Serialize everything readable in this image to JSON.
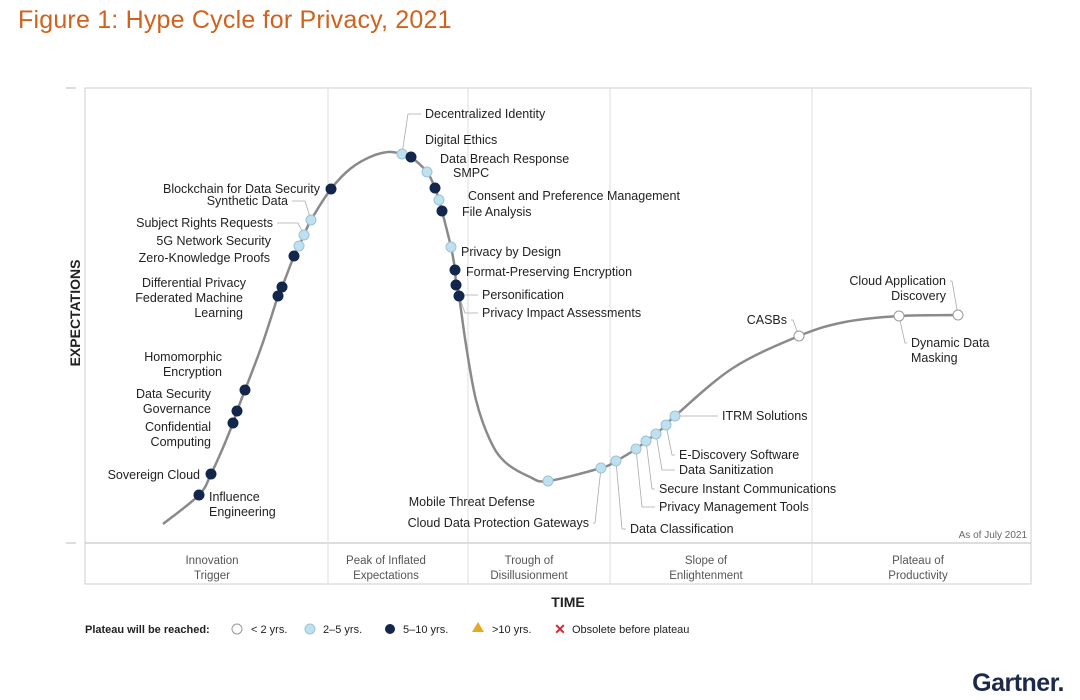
{
  "title": "Figure 1: Hype Cycle for Privacy, 2021",
  "brand": "Gartner.",
  "chart_data": {
    "type": "hype-cycle",
    "xlabel": "TIME",
    "ylabel": "EXPECTATIONS",
    "as_of": "As of July 2021",
    "phases": [
      {
        "line1": "Innovation",
        "line2": "Trigger"
      },
      {
        "line1": "Peak of Inflated",
        "line2": "Expectations"
      },
      {
        "line1": "Trough of",
        "line2": "Disillusionment"
      },
      {
        "line1": "Slope of",
        "line2": "Enlightenment"
      },
      {
        "line1": "Plateau of",
        "line2": "Productivity"
      }
    ],
    "legend": {
      "title": "Plateau will be reached:",
      "items": [
        {
          "key": "lt2",
          "label": "< 2 yrs."
        },
        {
          "key": "2to5",
          "label": "2–5 yrs."
        },
        {
          "key": "5to10",
          "label": "5–10 yrs."
        },
        {
          "key": "gt10",
          "label": ">10 yrs."
        },
        {
          "key": "obsolete",
          "label": "Obsolete before plateau"
        }
      ]
    },
    "technologies": [
      {
        "name": "Influence Engineering",
        "lines": [
          "Influence",
          "Engineering"
        ],
        "position": 0.04,
        "plateau": "5to10"
      },
      {
        "name": "Sovereign Cloud",
        "lines": [
          "Sovereign Cloud"
        ],
        "position": 0.055,
        "plateau": "5to10"
      },
      {
        "name": "Confidential Computing",
        "lines": [
          "Confidential",
          "Computing"
        ],
        "position": 0.087,
        "plateau": "5to10"
      },
      {
        "name": "Data Security Governance",
        "lines": [
          "Data Security",
          "Governance"
        ],
        "position": 0.09,
        "plateau": "5to10"
      },
      {
        "name": "Homomorphic Encryption",
        "lines": [
          "Homomorphic",
          "Encryption"
        ],
        "position": 0.097,
        "plateau": "5to10"
      },
      {
        "name": "Federated Machine Learning",
        "lines": [
          "Federated Machine",
          "Learning"
        ],
        "position": 0.125,
        "plateau": "5to10"
      },
      {
        "name": "Differential Privacy",
        "lines": [
          "Differential Privacy"
        ],
        "position": 0.128,
        "plateau": "5to10"
      },
      {
        "name": "Zero-Knowledge Proofs",
        "lines": [
          "Zero-Knowledge Proofs"
        ],
        "position": 0.137,
        "plateau": "5to10"
      },
      {
        "name": "5G Network Security",
        "lines": [
          "5G Network Security"
        ],
        "position": 0.14,
        "plateau": "2to5"
      },
      {
        "name": "Subject Rights Requests",
        "lines": [
          "Subject Rights Requests"
        ],
        "position": 0.145,
        "plateau": "2to5"
      },
      {
        "name": "Synthetic Data",
        "lines": [
          "Synthetic Data"
        ],
        "position": 0.153,
        "plateau": "2to5"
      },
      {
        "name": "Blockchain for Data Security",
        "lines": [
          "Blockchain for Data Security"
        ],
        "position": 0.168,
        "plateau": "5to10"
      },
      {
        "name": "Decentralized Identity",
        "lines": [
          "Decentralized Identity"
        ],
        "position": 0.23,
        "plateau": "2to5"
      },
      {
        "name": "Digital Ethics",
        "lines": [
          "Digital Ethics"
        ],
        "position": 0.24,
        "plateau": "5to10"
      },
      {
        "name": "Data Breach Response",
        "lines": [
          "Data Breach Response"
        ],
        "position": 0.255,
        "plateau": "2to5"
      },
      {
        "name": "SMPC",
        "lines": [
          "SMPC"
        ],
        "position": 0.265,
        "plateau": "5to10"
      },
      {
        "name": "Consent and Preference Management",
        "lines": [
          "Consent and Preference Management"
        ],
        "position": 0.27,
        "plateau": "2to5"
      },
      {
        "name": "File Analysis",
        "lines": [
          "File Analysis"
        ],
        "position": 0.275,
        "plateau": "5to10"
      },
      {
        "name": "Privacy by Design",
        "lines": [
          "Privacy by Design"
        ],
        "position": 0.29,
        "plateau": "2to5"
      },
      {
        "name": "Format-Preserving Encryption",
        "lines": [
          "Format-Preserving Encryption"
        ],
        "position": 0.3,
        "plateau": "5to10"
      },
      {
        "name": "Personification",
        "lines": [
          "Personification"
        ],
        "position": 0.305,
        "plateau": "5to10"
      },
      {
        "name": "Privacy Impact Assessments",
        "lines": [
          "Privacy Impact Assessments"
        ],
        "position": 0.31,
        "plateau": "5to10"
      },
      {
        "name": "Mobile Threat Defense",
        "lines": [
          "Mobile Threat Defense"
        ],
        "position": 0.505,
        "plateau": "2to5"
      },
      {
        "name": "Cloud Data Protection Gateways",
        "lines": [
          "Cloud Data Protection Gateways"
        ],
        "position": 0.56,
        "plateau": "2to5"
      },
      {
        "name": "Data Classification",
        "lines": [
          "Data Classification"
        ],
        "position": 0.575,
        "plateau": "2to5"
      },
      {
        "name": "Privacy Management Tools",
        "lines": [
          "Privacy Management Tools"
        ],
        "position": 0.6,
        "plateau": "2to5"
      },
      {
        "name": "Secure Instant Communications",
        "lines": [
          "Secure Instant Communications"
        ],
        "position": 0.61,
        "plateau": "2to5"
      },
      {
        "name": "Data Sanitization",
        "lines": [
          "Data Sanitization"
        ],
        "position": 0.62,
        "plateau": "2to5"
      },
      {
        "name": "E-Discovery Software",
        "lines": [
          "E-Discovery Software"
        ],
        "position": 0.63,
        "plateau": "2to5"
      },
      {
        "name": "ITRM Solutions",
        "lines": [
          "ITRM Solutions"
        ],
        "position": 0.64,
        "plateau": "2to5"
      },
      {
        "name": "CASBs",
        "lines": [
          "CASBs"
        ],
        "position": 0.77,
        "plateau": "lt2"
      },
      {
        "name": "Dynamic Data Masking",
        "lines": [
          "Dynamic Data",
          "Masking"
        ],
        "position": 0.885,
        "plateau": "lt2"
      },
      {
        "name": "Cloud Application Discovery",
        "lines": [
          "Cloud Application",
          "Discovery"
        ],
        "position": 0.945,
        "plateau": "lt2"
      }
    ]
  },
  "colors": {
    "title": "#d0621e",
    "lt2": "#ffffff",
    "2to5": "#bfe0ee",
    "5to10": "#13274d",
    "gt10": "#e7a823",
    "obsolete": "#d6252e",
    "curve": "#8a8a8a"
  }
}
